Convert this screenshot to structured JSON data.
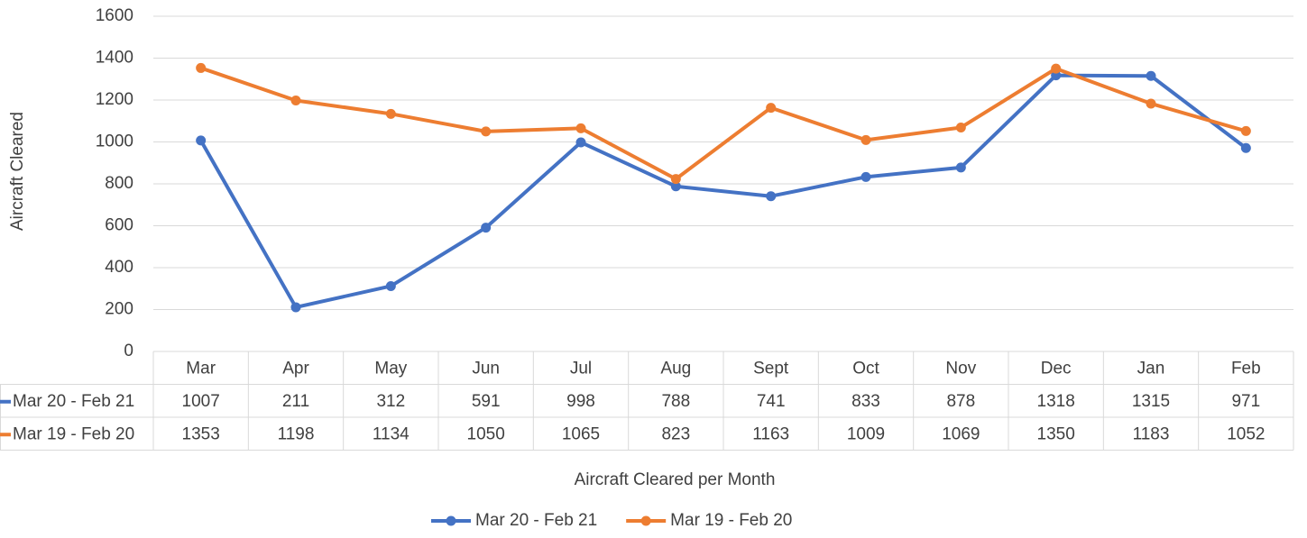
{
  "chart_data": {
    "type": "line",
    "y_label": "Aircraft Cleared",
    "x_label": "Aircraft Cleared per Month",
    "categories": [
      "Mar",
      "Apr",
      "May",
      "Jun",
      "Jul",
      "Aug",
      "Sept",
      "Oct",
      "Nov",
      "Dec",
      "Jan",
      "Feb"
    ],
    "series": [
      {
        "name": "Mar 20 - Feb 21",
        "color": "#4472c4",
        "values": [
          1007,
          211,
          312,
          591,
          998,
          788,
          741,
          833,
          878,
          1318,
          1315,
          971
        ]
      },
      {
        "name": "Mar 19 - Feb 20",
        "color": "#ed7d31",
        "values": [
          1353,
          1198,
          1134,
          1050,
          1065,
          823,
          1163,
          1009,
          1069,
          1350,
          1183,
          1052
        ]
      }
    ],
    "ylim": [
      0,
      1600
    ],
    "yticks": [
      0,
      200,
      400,
      600,
      800,
      1000,
      1200,
      1400,
      1600
    ],
    "grid": true,
    "data_table": true,
    "legend": "bottom"
  }
}
